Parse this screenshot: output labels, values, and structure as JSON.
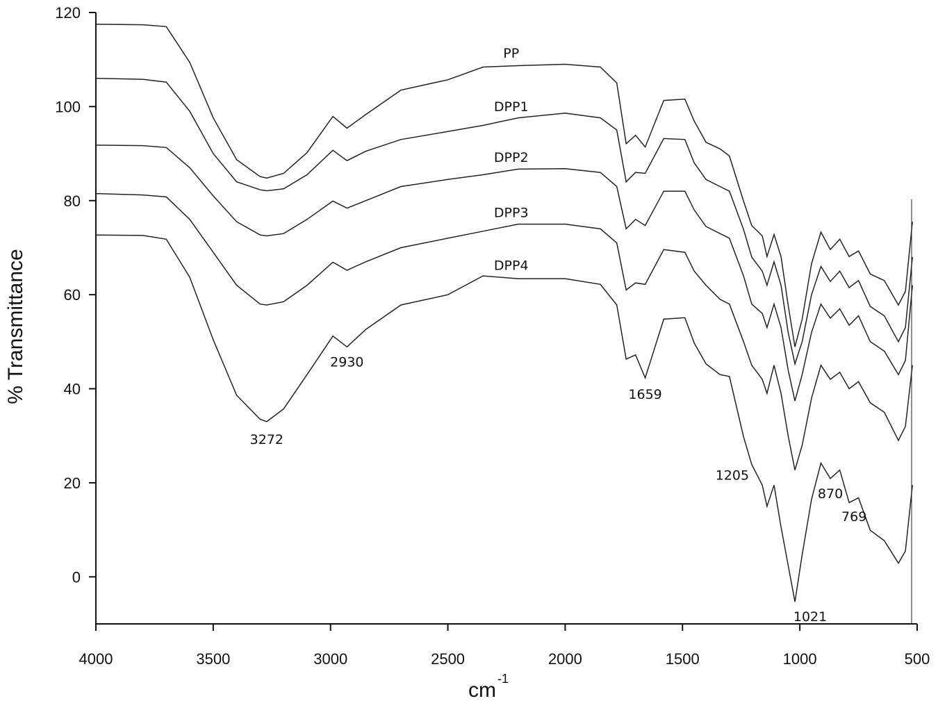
{
  "chart_data": {
    "type": "line",
    "ylabel": "% Transmittance",
    "xlabel": {
      "base": "cm",
      "superscript": "-1"
    },
    "xlim": [
      4000,
      500
    ],
    "ylim": [
      -10,
      120
    ],
    "xticks": [
      4000,
      3500,
      3000,
      2500,
      2000,
      1500,
      1000,
      500
    ],
    "yticks": [
      0,
      20,
      40,
      60,
      80,
      100,
      120
    ],
    "x": [
      4000,
      3800,
      3700,
      3600,
      3500,
      3400,
      3300,
      3272,
      3200,
      3100,
      2990,
      2930,
      2850,
      2700,
      2500,
      2350,
      2200,
      2000,
      1850,
      1780,
      1740,
      1700,
      1659,
      1580,
      1490,
      1450,
      1400,
      1340,
      1300,
      1240,
      1205,
      1160,
      1140,
      1110,
      1080,
      1050,
      1021,
      990,
      950,
      910,
      870,
      830,
      790,
      750,
      700,
      640,
      580,
      550,
      520
    ],
    "series": [
      {
        "name": "PP",
        "color": "#222222",
        "values": [
          117.5,
          117.4,
          117,
          109.4,
          97.6,
          88.7,
          85.1,
          84.8,
          85.8,
          90.2,
          97.9,
          95.4,
          98.3,
          103.5,
          105.7,
          108.4,
          108.7,
          109,
          108.4,
          105,
          92.1,
          93.9,
          91.4,
          101.3,
          101.6,
          96.9,
          92.4,
          91,
          89.5,
          79.9,
          74.7,
          72.5,
          68.1,
          72.8,
          68.1,
          57.8,
          48.9,
          54.8,
          66.6,
          73.3,
          69.6,
          71.8,
          68.1,
          69.3,
          64.4,
          63,
          57.8,
          60.7,
          75.5
        ]
      },
      {
        "name": "DPP1",
        "color": "#222222",
        "values": [
          106,
          105.8,
          105.2,
          99,
          90,
          84,
          82.3,
          82.1,
          82.5,
          85.5,
          90.7,
          88.5,
          90.5,
          93,
          94.7,
          96,
          97.6,
          98.6,
          97.6,
          95,
          84,
          86,
          85.8,
          93.2,
          93,
          88,
          84.5,
          83,
          82,
          73.9,
          68,
          65,
          62,
          67,
          62,
          52,
          45.3,
          50,
          60,
          66,
          62.8,
          65,
          61.5,
          63,
          57.5,
          55.5,
          50,
          53,
          68
        ]
      },
      {
        "name": "DPP2",
        "color": "#222222",
        "values": [
          91.8,
          91.7,
          91.3,
          87,
          81,
          75.5,
          72.7,
          72.5,
          73,
          76,
          79.9,
          78.4,
          80,
          83,
          84.5,
          85.5,
          86.7,
          86.8,
          86,
          83,
          74,
          76,
          74.7,
          82,
          82,
          78,
          74.5,
          73,
          72,
          64,
          58,
          56,
          53,
          58,
          53,
          44,
          37.4,
          43,
          52,
          58,
          55,
          57,
          53.5,
          55.5,
          50,
          48,
          43,
          46,
          62
        ]
      },
      {
        "name": "DPP3",
        "color": "#222222",
        "values": [
          81.5,
          81.2,
          80.8,
          76,
          69,
          62,
          58,
          57.8,
          58.5,
          62,
          66.9,
          65.2,
          67,
          70,
          72,
          73.5,
          75,
          75,
          74,
          71,
          61,
          62.5,
          62.2,
          69.6,
          69,
          65,
          62,
          59,
          58,
          50,
          45,
          42,
          39,
          45,
          39,
          30,
          22.7,
          28,
          38,
          45,
          42,
          43.5,
          40,
          41.5,
          37,
          35,
          29,
          32,
          45
        ]
      },
      {
        "name": "DPP4",
        "color": "#222222",
        "values": [
          72.7,
          72.6,
          71.8,
          63.7,
          50.4,
          38.6,
          33.5,
          33,
          35.7,
          43,
          51.2,
          48.9,
          52.6,
          57.8,
          60,
          64,
          63.4,
          63.4,
          62.2,
          57.8,
          46.3,
          47.2,
          42.3,
          54.8,
          55.1,
          49.7,
          45.3,
          43,
          42.6,
          29.8,
          23.9,
          19.5,
          15,
          19.5,
          10.6,
          2.5,
          -5.3,
          4.7,
          16.5,
          24.2,
          20.9,
          22.7,
          15.8,
          16.8,
          9.9,
          7.7,
          2.9,
          5.5,
          19.5
        ]
      }
    ],
    "peak_labels": [
      3272,
      2930,
      1659,
      1205,
      1021,
      870,
      769
    ]
  }
}
